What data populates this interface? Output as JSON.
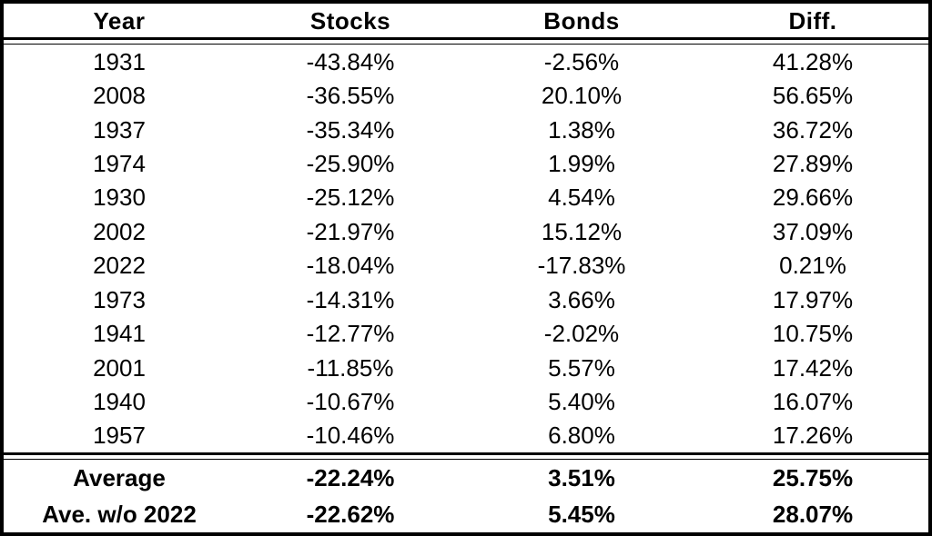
{
  "table": {
    "columns": [
      "Year",
      "Stocks",
      "Bonds",
      "Diff."
    ],
    "rows": [
      {
        "year": "1931",
        "stocks": "-43.84%",
        "bonds": "-2.56%",
        "diff": "41.28%"
      },
      {
        "year": "2008",
        "stocks": "-36.55%",
        "bonds": "20.10%",
        "diff": "56.65%"
      },
      {
        "year": "1937",
        "stocks": "-35.34%",
        "bonds": "1.38%",
        "diff": "36.72%"
      },
      {
        "year": "1974",
        "stocks": "-25.90%",
        "bonds": "1.99%",
        "diff": "27.89%"
      },
      {
        "year": "1930",
        "stocks": "-25.12%",
        "bonds": "4.54%",
        "diff": "29.66%"
      },
      {
        "year": "2002",
        "stocks": "-21.97%",
        "bonds": "15.12%",
        "diff": "37.09%"
      },
      {
        "year": "2022",
        "stocks": "-18.04%",
        "bonds": "-17.83%",
        "diff": "0.21%"
      },
      {
        "year": "1973",
        "stocks": "-14.31%",
        "bonds": "3.66%",
        "diff": "17.97%"
      },
      {
        "year": "1941",
        "stocks": "-12.77%",
        "bonds": "-2.02%",
        "diff": "10.75%"
      },
      {
        "year": "2001",
        "stocks": "-11.85%",
        "bonds": "5.57%",
        "diff": "17.42%"
      },
      {
        "year": "1940",
        "stocks": "-10.67%",
        "bonds": "5.40%",
        "diff": "16.07%"
      },
      {
        "year": "1957",
        "stocks": "-10.46%",
        "bonds": "6.80%",
        "diff": "17.26%"
      }
    ],
    "summary": [
      {
        "label": "Average",
        "stocks": "-22.24%",
        "bonds": "3.51%",
        "diff": "25.75%"
      },
      {
        "label": "Ave. w/o 2022",
        "stocks": "-22.62%",
        "bonds": "5.45%",
        "diff": "28.07%"
      }
    ]
  },
  "colors": {
    "text": "#000000",
    "border": "#000000",
    "background": "#ffffff"
  },
  "chart_data": {
    "type": "table",
    "title": "Worst stock market years: Stocks vs Bonds returns and difference",
    "columns": [
      "Year",
      "Stocks",
      "Bonds",
      "Diff."
    ],
    "rows": [
      [
        1931,
        -43.84,
        -2.56,
        41.28
      ],
      [
        2008,
        -36.55,
        20.1,
        56.65
      ],
      [
        1937,
        -35.34,
        1.38,
        36.72
      ],
      [
        1974,
        -25.9,
        1.99,
        27.89
      ],
      [
        1930,
        -25.12,
        4.54,
        29.66
      ],
      [
        2002,
        -21.97,
        15.12,
        37.09
      ],
      [
        2022,
        -18.04,
        -17.83,
        0.21
      ],
      [
        1973,
        -14.31,
        3.66,
        17.97
      ],
      [
        1941,
        -12.77,
        -2.02,
        10.75
      ],
      [
        2001,
        -11.85,
        5.57,
        17.42
      ],
      [
        1940,
        -10.67,
        5.4,
        16.07
      ],
      [
        1957,
        -10.46,
        6.8,
        17.26
      ]
    ],
    "summary_rows": [
      [
        "Average",
        -22.24,
        3.51,
        25.75
      ],
      [
        "Ave. w/o 2022",
        -22.62,
        5.45,
        28.07
      ]
    ],
    "units": "percent"
  }
}
